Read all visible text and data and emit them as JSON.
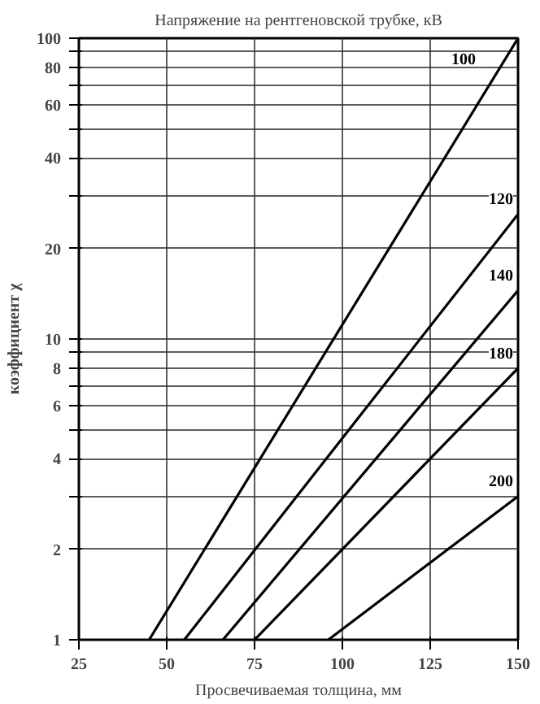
{
  "chart_data": {
    "type": "line",
    "title": "Напряжение на рентгеновской трубке, кВ",
    "xlabel": "Просвечиваемая толщина, мм",
    "ylabel": "коэффициент χ",
    "log": "y",
    "grid": true,
    "marker": "none",
    "line_style": "solid",
    "xlim": [
      25,
      150
    ],
    "xticks": [
      25,
      50,
      75,
      100,
      125,
      150
    ],
    "ylim": [
      1,
      100
    ],
    "yticks": [
      1,
      2,
      {
        "value": 3,
        "label": null
      },
      4,
      {
        "value": 5,
        "label": null
      },
      6,
      {
        "value": 7,
        "label": null
      },
      8,
      {
        "value": 9,
        "label": null
      },
      10,
      20,
      {
        "value": 30,
        "label": null
      },
      40,
      {
        "value": 50,
        "label": null
      },
      60,
      {
        "value": 70,
        "label": null
      },
      80,
      {
        "value": 90,
        "label": null
      },
      100
    ],
    "series": [
      {
        "name": "100",
        "color": "#000000",
        "x": [
          45,
          150
        ],
        "values": [
          1,
          100
        ]
      },
      {
        "name": "120",
        "color": "#000000",
        "x": [
          55,
          150
        ],
        "values": [
          1,
          26
        ]
      },
      {
        "name": "140",
        "color": "#000000",
        "x": [
          66,
          150
        ],
        "values": [
          1,
          14.5
        ]
      },
      {
        "name": "180",
        "color": "#000000",
        "x": [
          75,
          150
        ],
        "values": [
          1,
          8
        ]
      },
      {
        "name": "200",
        "color": "#000000",
        "x": [
          96,
          150
        ],
        "values": [
          1,
          3
        ]
      }
    ]
  }
}
